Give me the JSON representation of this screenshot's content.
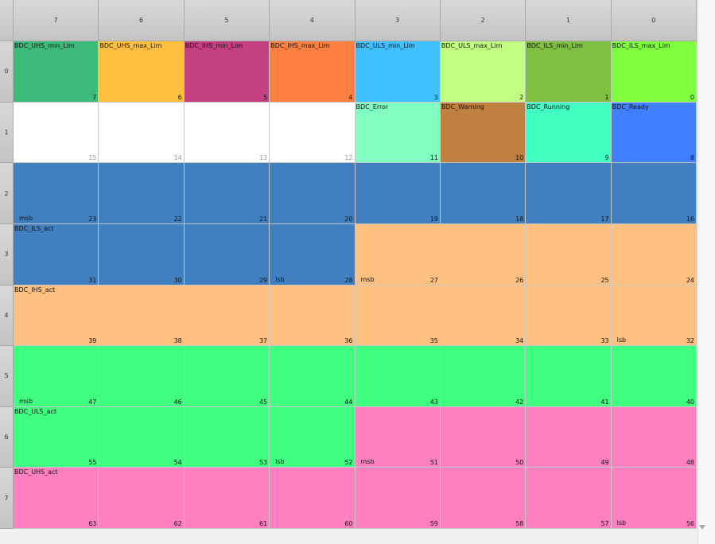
{
  "columns": [
    "7",
    "6",
    "5",
    "4",
    "3",
    "2",
    "1",
    "0"
  ],
  "rows": [
    "0",
    "1",
    "2",
    "3",
    "4",
    "5",
    "6",
    "7"
  ],
  "cells": [
    [
      {
        "bit": "7",
        "label": "BDC_UHS_min_Lim",
        "color": "#3dbb7b"
      },
      {
        "bit": "6",
        "label": "BDC_UHS_max_Lim",
        "color": "#ffc040"
      },
      {
        "bit": "5",
        "label": "BDC_IHS_min_Lim",
        "color": "#c44080"
      },
      {
        "bit": "4",
        "label": "BDC_IHS_max_Lim",
        "color": "#ff8040"
      },
      {
        "bit": "3",
        "label": "BDC_ULS_min_Lim",
        "color": "#40c0ff"
      },
      {
        "bit": "2",
        "label": "BDC_ULS_max_Lim",
        "color": "#c0ff80"
      },
      {
        "bit": "1",
        "label": "BDC_ILS_min_Lim",
        "color": "#80c040"
      },
      {
        "bit": "0",
        "label": "BDC_ILS_max_Lim",
        "color": "#80ff40"
      }
    ],
    [
      {
        "bit": "15",
        "color": "#ffffff"
      },
      {
        "bit": "14",
        "color": "#ffffff"
      },
      {
        "bit": "13",
        "color": "#ffffff"
      },
      {
        "bit": "12",
        "color": "#ffffff"
      },
      {
        "bit": "11",
        "label": "BDC_Error",
        "color": "#80ffc0"
      },
      {
        "bit": "10",
        "label": "BDC_Warning",
        "color": "#c08040"
      },
      {
        "bit": "9",
        "label": "BDC_Running",
        "color": "#40ffc0"
      },
      {
        "bit": "8",
        "label": "BDC_Ready",
        "color": "#4080ff"
      }
    ],
    [
      {
        "bit": "23",
        "marker": "msb",
        "color": "#4080c0"
      },
      {
        "bit": "22",
        "color": "#4080c0"
      },
      {
        "bit": "21",
        "color": "#4080c0"
      },
      {
        "bit": "20",
        "color": "#4080c0"
      },
      {
        "bit": "19",
        "color": "#4080c0"
      },
      {
        "bit": "18",
        "color": "#4080c0"
      },
      {
        "bit": "17",
        "color": "#4080c0"
      },
      {
        "bit": "16",
        "color": "#4080c0"
      }
    ],
    [
      {
        "bit": "31",
        "label": "BDC_ILS_act",
        "color": "#4080c0"
      },
      {
        "bit": "30",
        "color": "#4080c0"
      },
      {
        "bit": "29",
        "color": "#4080c0"
      },
      {
        "bit": "28",
        "marker": "lsb",
        "color": "#4080c0"
      },
      {
        "bit": "27",
        "marker": "msb",
        "color": "#ffc080"
      },
      {
        "bit": "26",
        "color": "#ffc080"
      },
      {
        "bit": "25",
        "color": "#ffc080"
      },
      {
        "bit": "24",
        "color": "#ffc080"
      }
    ],
    [
      {
        "bit": "39",
        "label": "BDC_IHS_act",
        "color": "#ffc080"
      },
      {
        "bit": "38",
        "color": "#ffc080"
      },
      {
        "bit": "37",
        "color": "#ffc080"
      },
      {
        "bit": "36",
        "color": "#ffc080"
      },
      {
        "bit": "35",
        "color": "#ffc080"
      },
      {
        "bit": "34",
        "color": "#ffc080"
      },
      {
        "bit": "33",
        "color": "#ffc080"
      },
      {
        "bit": "32",
        "marker": "lsb",
        "color": "#ffc080"
      }
    ],
    [
      {
        "bit": "47",
        "marker": "msb",
        "color": "#40ff80"
      },
      {
        "bit": "46",
        "color": "#40ff80"
      },
      {
        "bit": "45",
        "color": "#40ff80"
      },
      {
        "bit": "44",
        "color": "#40ff80"
      },
      {
        "bit": "43",
        "color": "#40ff80"
      },
      {
        "bit": "42",
        "color": "#40ff80"
      },
      {
        "bit": "41",
        "color": "#40ff80"
      },
      {
        "bit": "40",
        "color": "#40ff80"
      }
    ],
    [
      {
        "bit": "55",
        "label": "BDC_ULS_act",
        "color": "#40ff80"
      },
      {
        "bit": "54",
        "color": "#40ff80"
      },
      {
        "bit": "53",
        "color": "#40ff80"
      },
      {
        "bit": "52",
        "marker": "lsb",
        "color": "#40ff80"
      },
      {
        "bit": "51",
        "marker": "msb",
        "color": "#ff80c0"
      },
      {
        "bit": "50",
        "color": "#ff80c0"
      },
      {
        "bit": "49",
        "color": "#ff80c0"
      },
      {
        "bit": "48",
        "color": "#ff80c0"
      }
    ],
    [
      {
        "bit": "63",
        "label": "BDC_UHS_act",
        "color": "#ff80c0"
      },
      {
        "bit": "62",
        "color": "#ff80c0"
      },
      {
        "bit": "61",
        "color": "#ff80c0"
      },
      {
        "bit": "60",
        "color": "#ff80c0"
      },
      {
        "bit": "59",
        "color": "#ff80c0"
      },
      {
        "bit": "58",
        "color": "#ff80c0"
      },
      {
        "bit": "57",
        "color": "#ff80c0"
      },
      {
        "bit": "56",
        "marker": "lsb",
        "color": "#ff80c0"
      }
    ]
  ]
}
